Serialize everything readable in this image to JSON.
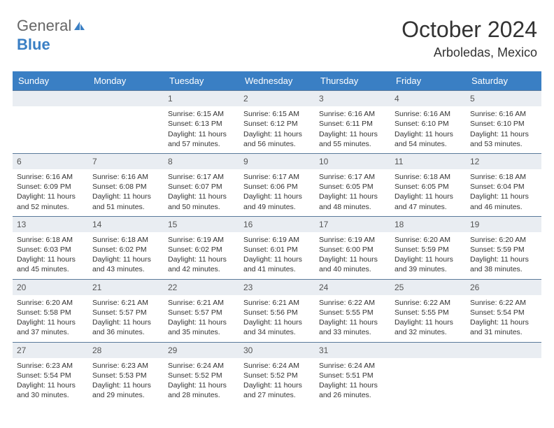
{
  "logo": {
    "text1": "General",
    "text2": "Blue"
  },
  "header": {
    "month": "October 2024",
    "location": "Arboledas, Mexico"
  },
  "colors": {
    "header_bg": "#3a7fc4",
    "header_text": "#ffffff",
    "daynum_bg": "#e9edf2",
    "daynum_border": "#5a7a9a",
    "body_text": "#333333",
    "logo_gray": "#666666",
    "logo_blue": "#3a7fc4",
    "background": "#ffffff"
  },
  "dayhead": [
    "Sunday",
    "Monday",
    "Tuesday",
    "Wednesday",
    "Thursday",
    "Friday",
    "Saturday"
  ],
  "weeks": [
    [
      {
        "n": "",
        "sr": "",
        "ss": "",
        "d1": "",
        "d2": "",
        "empty": true
      },
      {
        "n": "",
        "sr": "",
        "ss": "",
        "d1": "",
        "d2": "",
        "empty": true
      },
      {
        "n": "1",
        "sr": "Sunrise: 6:15 AM",
        "ss": "Sunset: 6:13 PM",
        "d1": "Daylight: 11 hours",
        "d2": "and 57 minutes."
      },
      {
        "n": "2",
        "sr": "Sunrise: 6:15 AM",
        "ss": "Sunset: 6:12 PM",
        "d1": "Daylight: 11 hours",
        "d2": "and 56 minutes."
      },
      {
        "n": "3",
        "sr": "Sunrise: 6:16 AM",
        "ss": "Sunset: 6:11 PM",
        "d1": "Daylight: 11 hours",
        "d2": "and 55 minutes."
      },
      {
        "n": "4",
        "sr": "Sunrise: 6:16 AM",
        "ss": "Sunset: 6:10 PM",
        "d1": "Daylight: 11 hours",
        "d2": "and 54 minutes."
      },
      {
        "n": "5",
        "sr": "Sunrise: 6:16 AM",
        "ss": "Sunset: 6:10 PM",
        "d1": "Daylight: 11 hours",
        "d2": "and 53 minutes."
      }
    ],
    [
      {
        "n": "6",
        "sr": "Sunrise: 6:16 AM",
        "ss": "Sunset: 6:09 PM",
        "d1": "Daylight: 11 hours",
        "d2": "and 52 minutes."
      },
      {
        "n": "7",
        "sr": "Sunrise: 6:16 AM",
        "ss": "Sunset: 6:08 PM",
        "d1": "Daylight: 11 hours",
        "d2": "and 51 minutes."
      },
      {
        "n": "8",
        "sr": "Sunrise: 6:17 AM",
        "ss": "Sunset: 6:07 PM",
        "d1": "Daylight: 11 hours",
        "d2": "and 50 minutes."
      },
      {
        "n": "9",
        "sr": "Sunrise: 6:17 AM",
        "ss": "Sunset: 6:06 PM",
        "d1": "Daylight: 11 hours",
        "d2": "and 49 minutes."
      },
      {
        "n": "10",
        "sr": "Sunrise: 6:17 AM",
        "ss": "Sunset: 6:05 PM",
        "d1": "Daylight: 11 hours",
        "d2": "and 48 minutes."
      },
      {
        "n": "11",
        "sr": "Sunrise: 6:18 AM",
        "ss": "Sunset: 6:05 PM",
        "d1": "Daylight: 11 hours",
        "d2": "and 47 minutes."
      },
      {
        "n": "12",
        "sr": "Sunrise: 6:18 AM",
        "ss": "Sunset: 6:04 PM",
        "d1": "Daylight: 11 hours",
        "d2": "and 46 minutes."
      }
    ],
    [
      {
        "n": "13",
        "sr": "Sunrise: 6:18 AM",
        "ss": "Sunset: 6:03 PM",
        "d1": "Daylight: 11 hours",
        "d2": "and 45 minutes."
      },
      {
        "n": "14",
        "sr": "Sunrise: 6:18 AM",
        "ss": "Sunset: 6:02 PM",
        "d1": "Daylight: 11 hours",
        "d2": "and 43 minutes."
      },
      {
        "n": "15",
        "sr": "Sunrise: 6:19 AM",
        "ss": "Sunset: 6:02 PM",
        "d1": "Daylight: 11 hours",
        "d2": "and 42 minutes."
      },
      {
        "n": "16",
        "sr": "Sunrise: 6:19 AM",
        "ss": "Sunset: 6:01 PM",
        "d1": "Daylight: 11 hours",
        "d2": "and 41 minutes."
      },
      {
        "n": "17",
        "sr": "Sunrise: 6:19 AM",
        "ss": "Sunset: 6:00 PM",
        "d1": "Daylight: 11 hours",
        "d2": "and 40 minutes."
      },
      {
        "n": "18",
        "sr": "Sunrise: 6:20 AM",
        "ss": "Sunset: 5:59 PM",
        "d1": "Daylight: 11 hours",
        "d2": "and 39 minutes."
      },
      {
        "n": "19",
        "sr": "Sunrise: 6:20 AM",
        "ss": "Sunset: 5:59 PM",
        "d1": "Daylight: 11 hours",
        "d2": "and 38 minutes."
      }
    ],
    [
      {
        "n": "20",
        "sr": "Sunrise: 6:20 AM",
        "ss": "Sunset: 5:58 PM",
        "d1": "Daylight: 11 hours",
        "d2": "and 37 minutes."
      },
      {
        "n": "21",
        "sr": "Sunrise: 6:21 AM",
        "ss": "Sunset: 5:57 PM",
        "d1": "Daylight: 11 hours",
        "d2": "and 36 minutes."
      },
      {
        "n": "22",
        "sr": "Sunrise: 6:21 AM",
        "ss": "Sunset: 5:57 PM",
        "d1": "Daylight: 11 hours",
        "d2": "and 35 minutes."
      },
      {
        "n": "23",
        "sr": "Sunrise: 6:21 AM",
        "ss": "Sunset: 5:56 PM",
        "d1": "Daylight: 11 hours",
        "d2": "and 34 minutes."
      },
      {
        "n": "24",
        "sr": "Sunrise: 6:22 AM",
        "ss": "Sunset: 5:55 PM",
        "d1": "Daylight: 11 hours",
        "d2": "and 33 minutes."
      },
      {
        "n": "25",
        "sr": "Sunrise: 6:22 AM",
        "ss": "Sunset: 5:55 PM",
        "d1": "Daylight: 11 hours",
        "d2": "and 32 minutes."
      },
      {
        "n": "26",
        "sr": "Sunrise: 6:22 AM",
        "ss": "Sunset: 5:54 PM",
        "d1": "Daylight: 11 hours",
        "d2": "and 31 minutes."
      }
    ],
    [
      {
        "n": "27",
        "sr": "Sunrise: 6:23 AM",
        "ss": "Sunset: 5:54 PM",
        "d1": "Daylight: 11 hours",
        "d2": "and 30 minutes."
      },
      {
        "n": "28",
        "sr": "Sunrise: 6:23 AM",
        "ss": "Sunset: 5:53 PM",
        "d1": "Daylight: 11 hours",
        "d2": "and 29 minutes."
      },
      {
        "n": "29",
        "sr": "Sunrise: 6:24 AM",
        "ss": "Sunset: 5:52 PM",
        "d1": "Daylight: 11 hours",
        "d2": "and 28 minutes."
      },
      {
        "n": "30",
        "sr": "Sunrise: 6:24 AM",
        "ss": "Sunset: 5:52 PM",
        "d1": "Daylight: 11 hours",
        "d2": "and 27 minutes."
      },
      {
        "n": "31",
        "sr": "Sunrise: 6:24 AM",
        "ss": "Sunset: 5:51 PM",
        "d1": "Daylight: 11 hours",
        "d2": "and 26 minutes."
      },
      {
        "n": "",
        "sr": "",
        "ss": "",
        "d1": "",
        "d2": "",
        "empty": true
      },
      {
        "n": "",
        "sr": "",
        "ss": "",
        "d1": "",
        "d2": "",
        "empty": true
      }
    ]
  ]
}
